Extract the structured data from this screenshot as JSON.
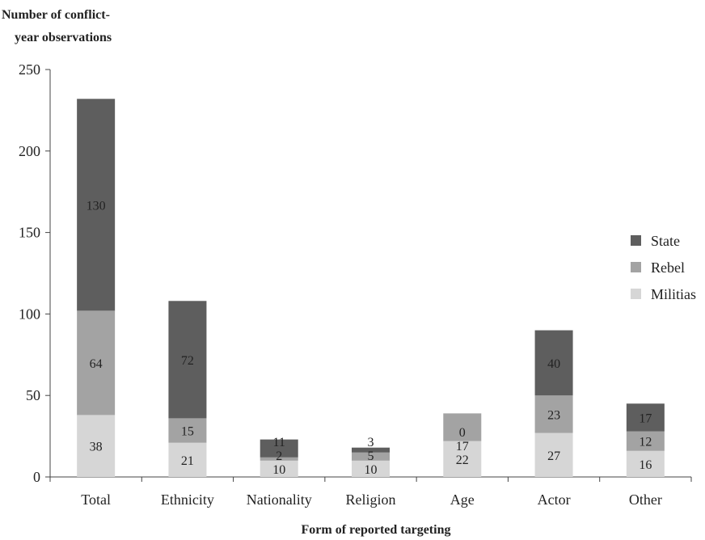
{
  "chart_data": {
    "type": "bar",
    "stacked": true,
    "title": "",
    "ylabel_lines": [
      "Number of conflict-",
      "year observations"
    ],
    "xlabel": "Form of reported targeting",
    "categories": [
      "Total",
      "Ethnicity",
      "Nationality",
      "Religion",
      "Age",
      "Actor",
      "Other"
    ],
    "ylim": [
      0,
      250
    ],
    "yticks": [
      0,
      50,
      100,
      150,
      200,
      250
    ],
    "grid": false,
    "legend_position": "right",
    "series": [
      {
        "name": "Militias",
        "color": "#d6d6d6",
        "values": [
          38,
          21,
          10,
          10,
          22,
          27,
          16
        ]
      },
      {
        "name": "Rebel",
        "color": "#a3a3a3",
        "values": [
          64,
          15,
          2,
          5,
          17,
          23,
          12
        ]
      },
      {
        "name": "State",
        "color": "#5e5e5e",
        "values": [
          130,
          72,
          11,
          3,
          0,
          40,
          17
        ]
      }
    ],
    "legend_order": [
      "State",
      "Rebel",
      "Militias"
    ]
  }
}
